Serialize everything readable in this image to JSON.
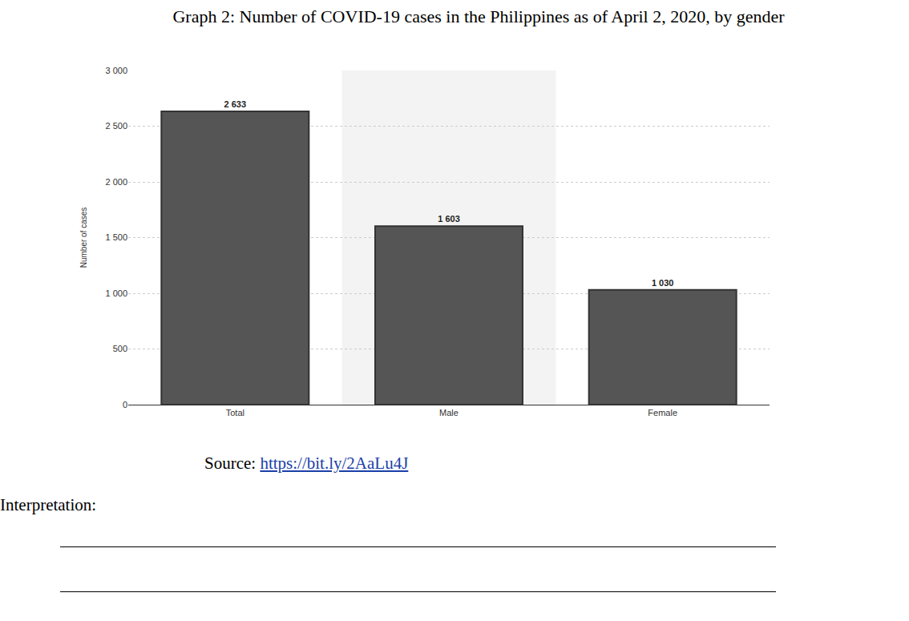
{
  "chart_data": {
    "type": "bar",
    "title": "Graph 2: Number of COVID-19 cases in the Philippines as of April 2, 2020, by gender",
    "y_label": "Number of cases",
    "categories": [
      "Total",
      "Male",
      "Female"
    ],
    "values": [
      2633,
      1603,
      1030
    ],
    "value_labels": [
      "2 633",
      "1 603",
      "1 030"
    ],
    "data_labels": true,
    "color": "#555555",
    "ylim": [
      0,
      3000
    ],
    "yticks": [
      0,
      500,
      {
        "value": 1000,
        "label": "1 000"
      },
      {
        "value": 1500,
        "label": "1 500"
      },
      {
        "value": 2000,
        "label": "2 000"
      },
      {
        "value": 2500,
        "label": "2 500"
      },
      {
        "value": 3000,
        "label": "3 000"
      }
    ],
    "grid": true
  },
  "source_label": "Source:",
  "source_url": "https://bit.ly/2AaLu4J",
  "prompt": "Interpretation:"
}
